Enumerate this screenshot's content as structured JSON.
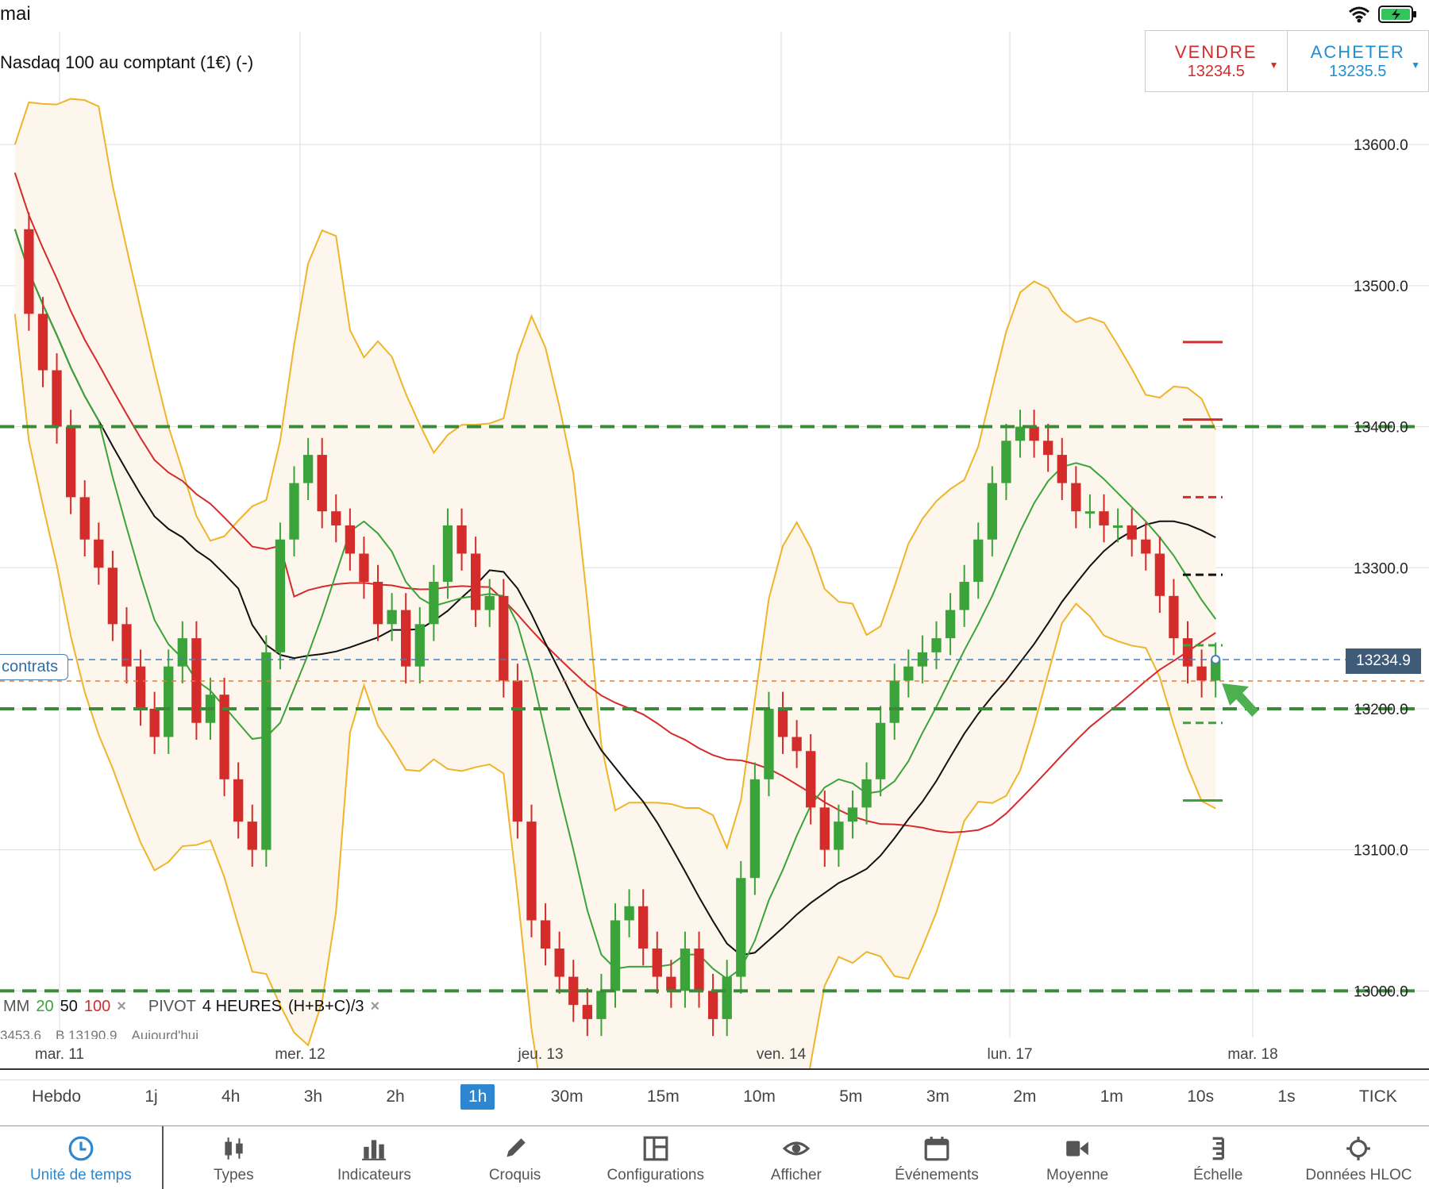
{
  "status_bar": {
    "title": "mai"
  },
  "instrument": "Nasdaq 100 au comptant (1€) (-)",
  "trade": {
    "sell_label": "VENDRE",
    "sell_price": "13234.5",
    "buy_label": "ACHETER",
    "buy_price": "13235.5",
    "sell_color": "#d42b2b",
    "buy_color": "#1f8fd1"
  },
  "position_tag": "contrats",
  "current_price_label": "13234.9",
  "indicators": {
    "mm_label": "MM",
    "mm_20": "20",
    "mm_50": "50",
    "mm_100": "100",
    "pivot_label": "PIVOT",
    "pivot_period": "4 HEURES",
    "pivot_formula": "(H+B+C)/3",
    "close_glyph": "×",
    "row2": [
      "3453.6",
      "B 13190.9",
      "Aujourd'hui"
    ]
  },
  "timeframes": [
    "Hebdo",
    "1j",
    "4h",
    "3h",
    "2h",
    "1h",
    "30m",
    "15m",
    "10m",
    "5m",
    "3m",
    "2m",
    "1m",
    "10s",
    "1s",
    "TICK"
  ],
  "active_timeframe": "1h",
  "toolbar": [
    {
      "label": "Unité de temps",
      "icon": "clock-icon"
    },
    {
      "label": "Types",
      "icon": "candles-icon"
    },
    {
      "label": "Indicateurs",
      "icon": "bar-chart-icon"
    },
    {
      "label": "Croquis",
      "icon": "pencil-icon"
    },
    {
      "label": "Configurations",
      "icon": "layout-icon"
    },
    {
      "label": "Afficher",
      "icon": "eye-icon"
    },
    {
      "label": "Événements",
      "icon": "calendar-icon"
    },
    {
      "label": "Moyenne",
      "icon": "video-icon"
    },
    {
      "label": "Échelle",
      "icon": "scale-icon"
    },
    {
      "label": "Données HLOC",
      "icon": "crosshair-icon"
    }
  ],
  "chart_data": {
    "type": "candlestick",
    "timeframe": "1h",
    "x_ticks": [
      "mar. 11",
      "mer. 12",
      "jeu. 13",
      "ven. 14",
      "lun. 17",
      "mar. 18"
    ],
    "y_ticks": [
      13000,
      13100,
      13200,
      13300,
      13400,
      13500,
      13600
    ],
    "y_labels": [
      "13000.0",
      "13100.0",
      "13200.0",
      "13300.0",
      "13400.0",
      "13500.0",
      "13600.0"
    ],
    "ylim": [
      12967,
      13680
    ],
    "current_price": 13234.9,
    "candles_close_path": [
      13540,
      13480,
      13440,
      13400,
      13350,
      13320,
      13300,
      13260,
      13230,
      13200,
      13180,
      13230,
      13250,
      13190,
      13210,
      13150,
      13120,
      13100,
      13240,
      13320,
      13360,
      13380,
      13340,
      13330,
      13310,
      13290,
      13260,
      13270,
      13230,
      13260,
      13290,
      13330,
      13310,
      13270,
      13280,
      13220,
      13120,
      13050,
      13030,
      13010,
      12990,
      12980,
      13000,
      13050,
      13060,
      13030,
      13010,
      13000,
      13030,
      13000,
      12980,
      13010,
      13080,
      13150,
      13200,
      13180,
      13170,
      13130,
      13100,
      13120,
      13130,
      13150,
      13190,
      13220,
      13230,
      13240,
      13250,
      13270,
      13290,
      13320,
      13360,
      13390,
      13400,
      13390,
      13380,
      13360,
      13340,
      13340,
      13330,
      13330,
      13320,
      13310,
      13280,
      13250,
      13230,
      13220,
      13235
    ],
    "support_resistance_levels": [
      13400,
      13200,
      13000
    ],
    "pivot_marks": [
      {
        "value": 13460,
        "color": "#d42b2b",
        "style": "solid"
      },
      {
        "value": 13405,
        "color": "#d42b2b",
        "style": "solid"
      },
      {
        "value": 13350,
        "color": "#d42b2b",
        "style": "dashed"
      },
      {
        "value": 13295,
        "color": "#111111",
        "style": "dashed"
      },
      {
        "value": 13245,
        "color": "#3aa43a",
        "style": "dashed"
      },
      {
        "value": 13190,
        "color": "#3aa43a",
        "style": "dashed"
      },
      {
        "value": 13135,
        "color": "#3aa43a",
        "style": "solid"
      }
    ],
    "series": [
      {
        "name": "MM 20",
        "color": "#3aa43a"
      },
      {
        "name": "MM 50",
        "color": "#111111"
      },
      {
        "name": "MM 100",
        "color": "#d42b2b"
      }
    ],
    "colors": {
      "up": "#3aa43a",
      "down": "#d42b2b",
      "bands": "#f0b429",
      "band_fill": "#fdf6ec"
    }
  }
}
